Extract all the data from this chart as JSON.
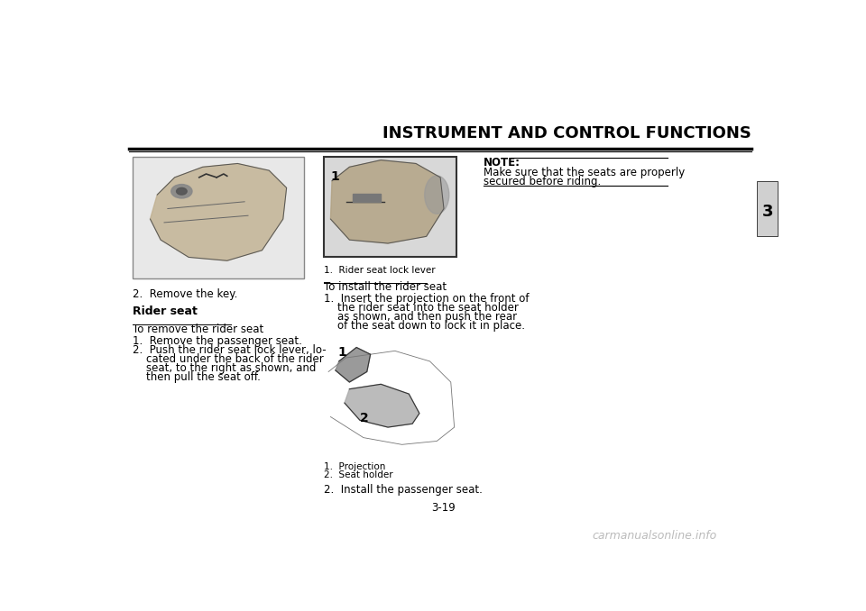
{
  "title": "INSTRUMENT AND CONTROL FUNCTIONS",
  "page_number": "3-19",
  "chapter_number": "3",
  "background_color": "#ffffff",
  "text_color": "#000000",
  "title_fontsize": 13,
  "body_fontsize": 8.5,
  "small_fontsize": 7.5,
  "watermark": "carmanualsonline.info",
  "section_header": "Rider seat",
  "subsection1": "To remove the rider seat",
  "step2_label": "2.  Remove the key.",
  "note_label": "NOTE:",
  "note_text": "Make sure that the seats are properly\nsecured before riding.",
  "img1_caption": "1.  Rider seat lock lever",
  "install_header": "To install the rider seat",
  "install_captions_1": "1.  Projection",
  "install_captions_2": "2.  Seat holder",
  "install_step2": "2.  Install the passenger seat.",
  "remove_step1": "1.  Remove the passenger seat.",
  "remove_step2_line1": "2.  Push the rider seat lock lever, lo-",
  "remove_step2_line2": "    cated under the back of the rider",
  "remove_step2_line3": "    seat, to the right as shown, and",
  "remove_step2_line4": "    then pull the seat off.",
  "install_step1_line1": "1.  Insert the projection on the front of",
  "install_step1_line2": "    the rider seat into the seat holder",
  "install_step1_line3": "    as shown, and then push the rear",
  "install_step1_line4": "    of the seat down to lock it in place."
}
